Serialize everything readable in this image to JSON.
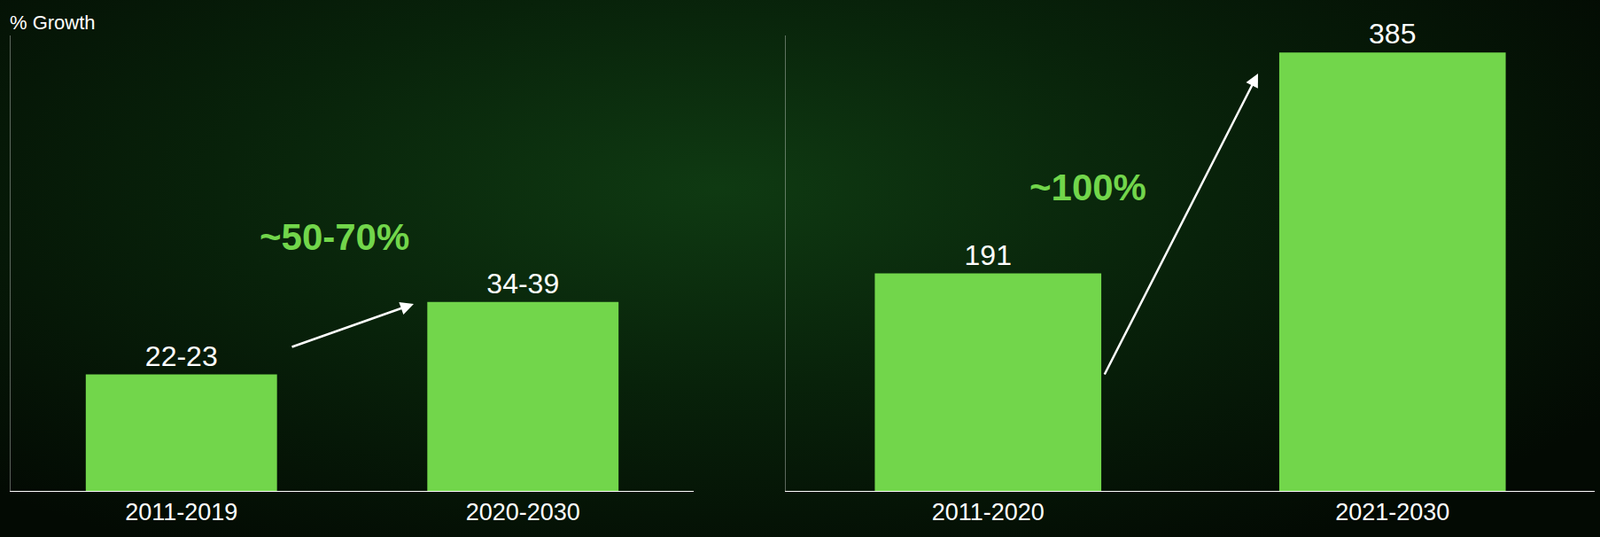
{
  "title": "% Growth",
  "chart_data": [
    {
      "type": "bar",
      "categories": [
        "2011-2019",
        "2020-2030"
      ],
      "values": [
        22.5,
        36.5
      ],
      "value_labels": [
        "22-23",
        "34-39"
      ],
      "data_labels": true,
      "color": "#72d64b",
      "ylim": [
        0,
        88
      ],
      "tick_labels": "x",
      "grid": false,
      "annotations": [
        {
          "text": "~50-70%"
        }
      ]
    },
    {
      "type": "bar",
      "categories": [
        "2011-2020",
        "2021-2030"
      ],
      "values": [
        191,
        385
      ],
      "data_labels": true,
      "color": "#72d64b",
      "ylim": [
        0,
        400
      ],
      "tick_labels": "x",
      "grid": false,
      "annotations": [
        {
          "text": "~100%"
        }
      ]
    }
  ]
}
